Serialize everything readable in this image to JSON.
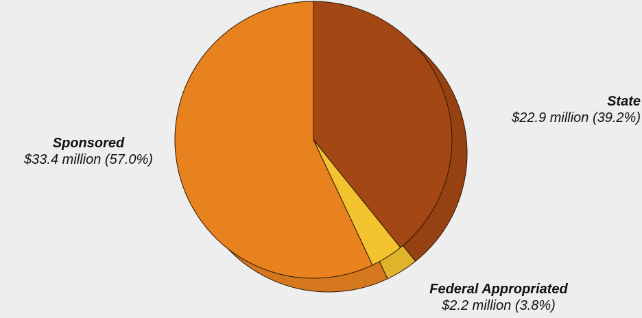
{
  "chart_data": {
    "type": "pie",
    "title": "",
    "slices": [
      {
        "name": "State",
        "value_text": "$22.9 million (39.2%)",
        "value": 22.9,
        "percent": 39.2,
        "color": "#a34714"
      },
      {
        "name": "Federal Appropriated",
        "value_text": "$2.2 million (3.8%)",
        "value": 2.2,
        "percent": 3.8,
        "color": "#f2c32e"
      },
      {
        "name": "Sponsored",
        "value_text": "$33.4 million (57.0%)",
        "value": 33.4,
        "percent": 57.0,
        "color": "#e8821f"
      }
    ],
    "units": "$ million",
    "legend": "none",
    "labels_on_chart": true,
    "three_d": true
  }
}
